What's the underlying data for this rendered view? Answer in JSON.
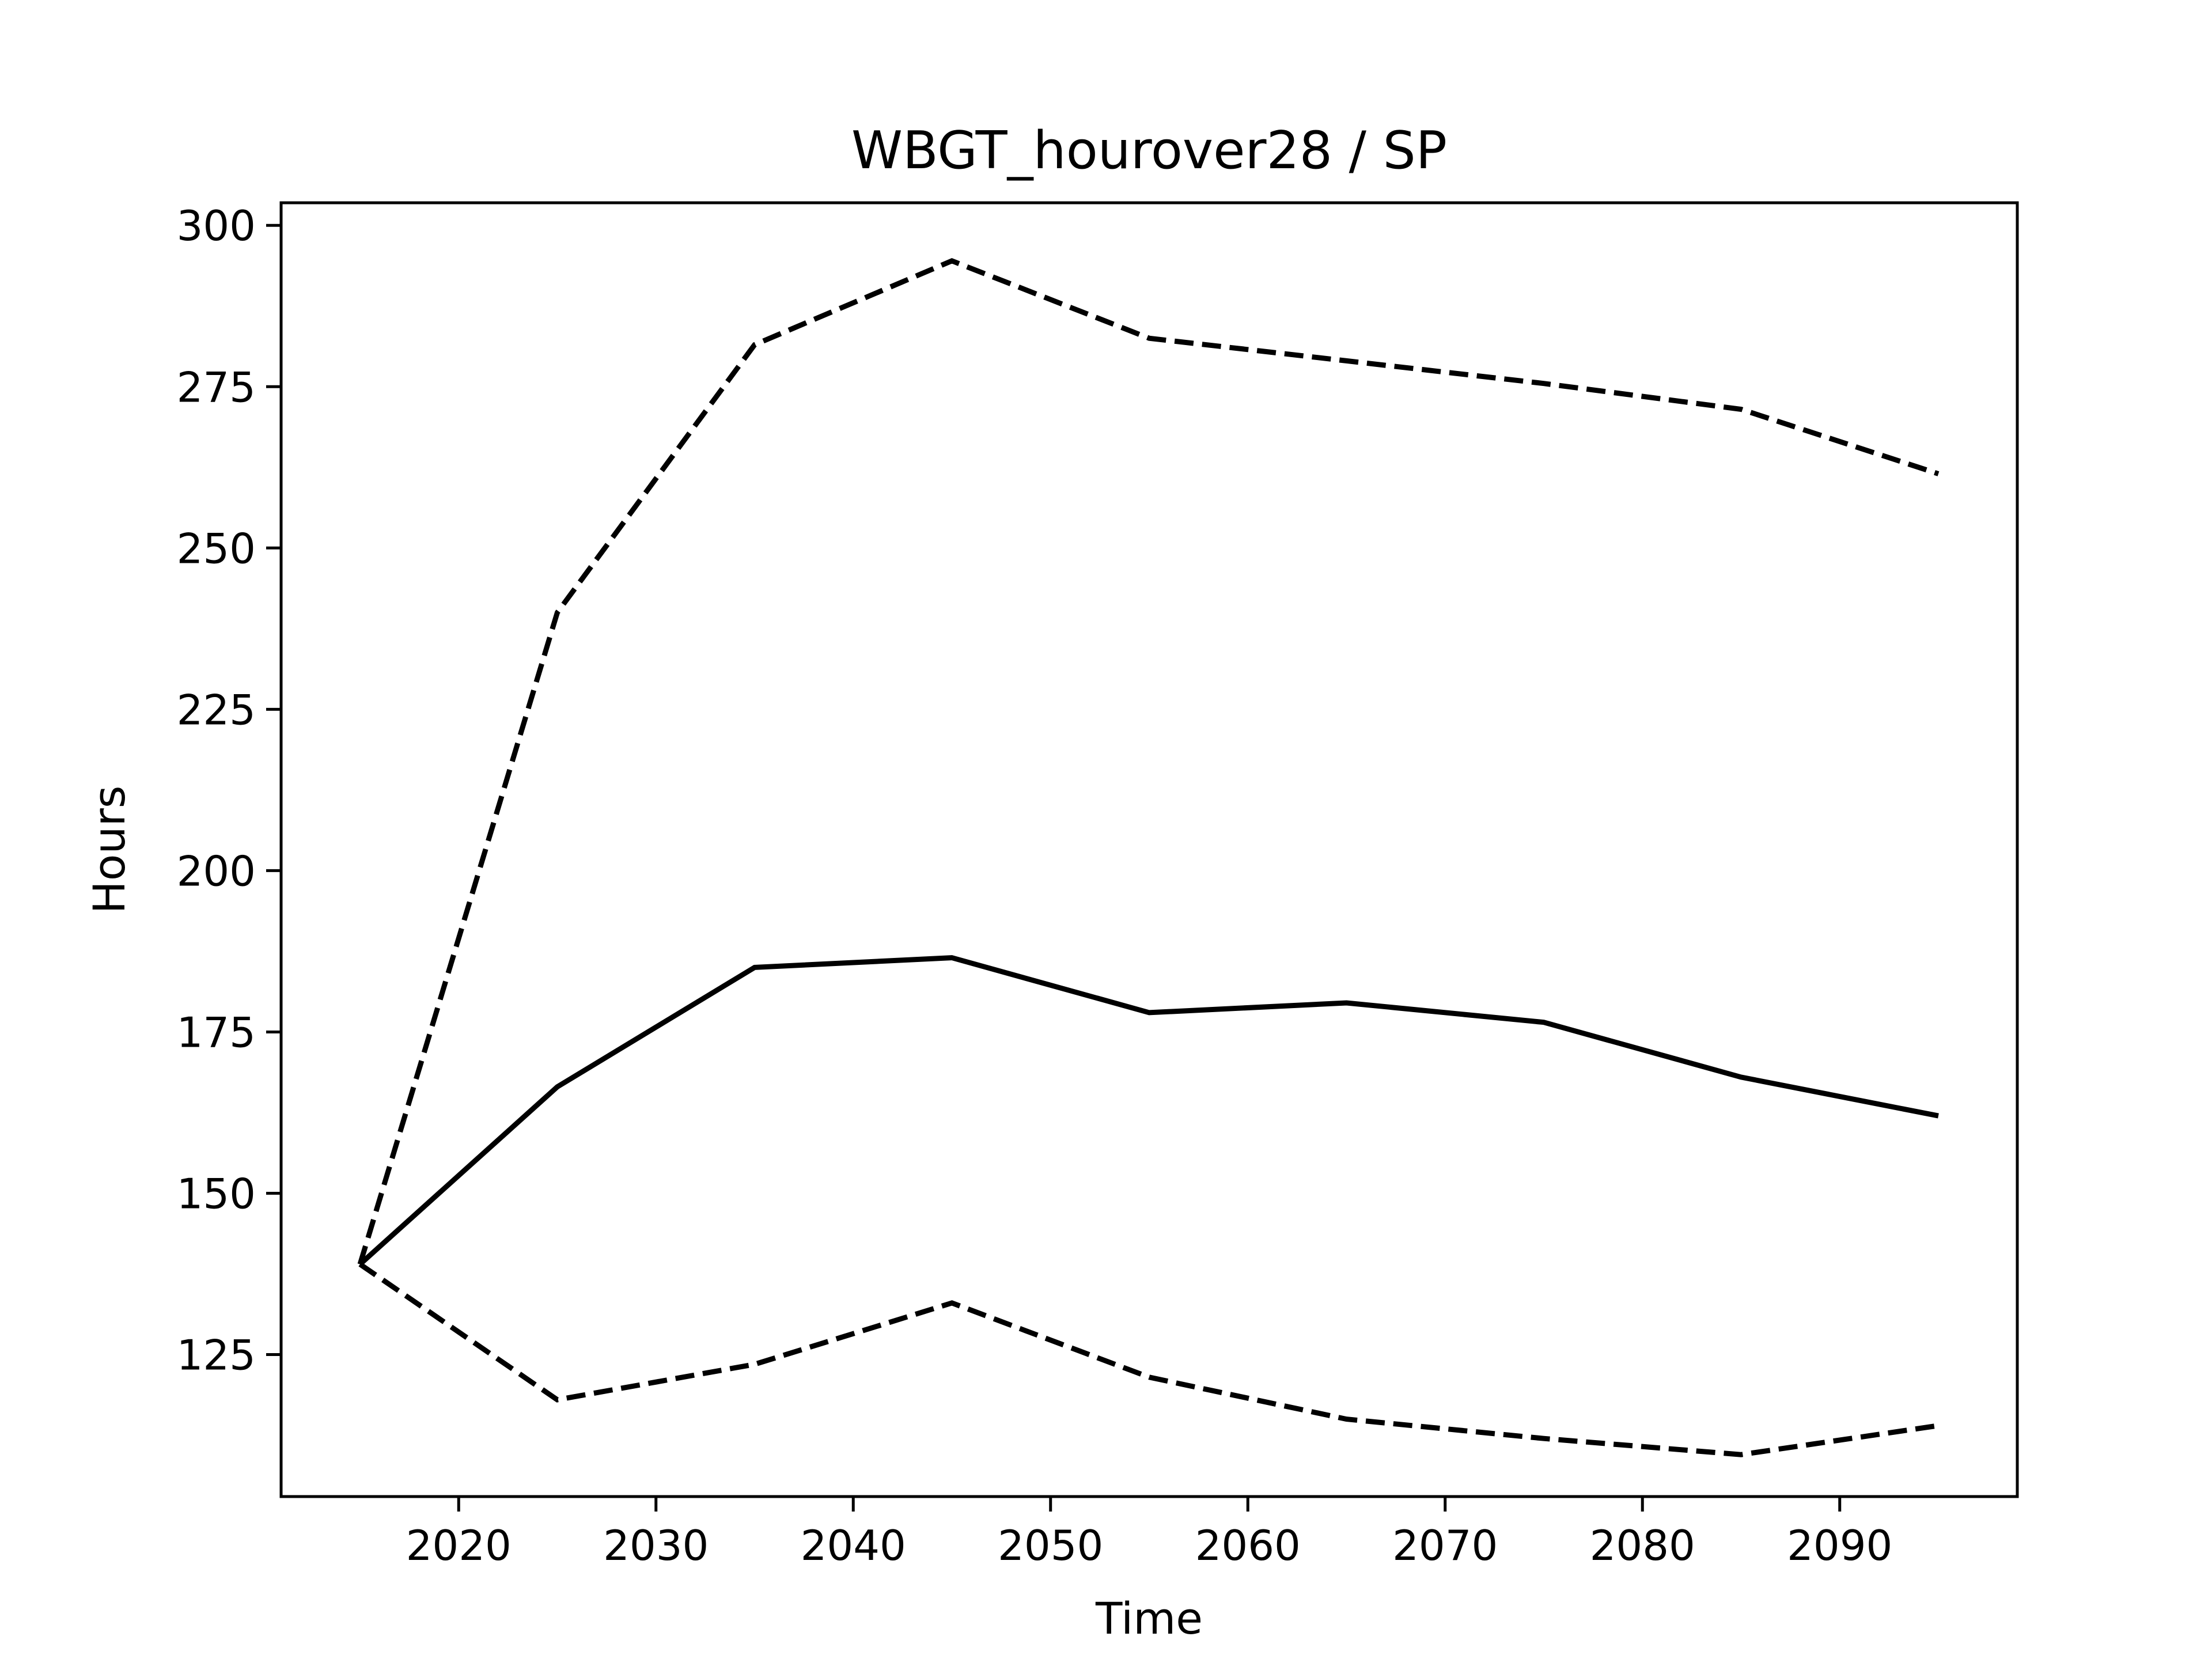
{
  "chart_data": {
    "type": "line",
    "title": "WBGT_hourover28 / SP",
    "xlabel": "Time",
    "ylabel": "Hours",
    "x": [
      2015,
      2025,
      2035,
      2045,
      2055,
      2065,
      2075,
      2085,
      2095
    ],
    "series": [
      {
        "style": "dashed",
        "values": [
          139,
          240,
          281.5,
          294.5,
          282.5,
          279,
          275.5,
          271.5,
          261.5
        ]
      },
      {
        "style": "solid",
        "values": [
          139,
          166.5,
          185,
          186.5,
          178,
          179.5,
          176.5,
          168,
          162
        ]
      },
      {
        "style": "dashed",
        "values": [
          139,
          118,
          123.5,
          133,
          121.5,
          115,
          112,
          109.5,
          114
        ]
      }
    ],
    "xlim": [
      2011,
      2099
    ],
    "ylim": [
      103,
      303.5
    ],
    "xticks": [
      2020,
      2030,
      2040,
      2050,
      2060,
      2070,
      2080,
      2090
    ],
    "yticks": [
      125,
      150,
      175,
      200,
      225,
      250,
      275,
      300
    ],
    "grid": false,
    "line_color": "#000000"
  }
}
